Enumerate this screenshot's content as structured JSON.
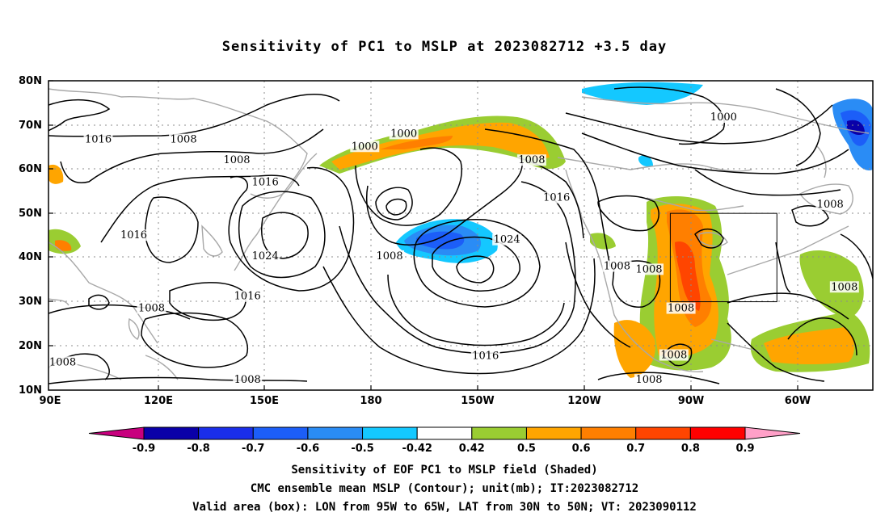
{
  "title": "Sensitivity of PC1 to MSLP at 2023082712 +3.5 day",
  "lat_labels": [
    "80N",
    "70N",
    "60N",
    "50N",
    "40N",
    "30N",
    "20N",
    "10N"
  ],
  "lon_labels": [
    "90E",
    "120E",
    "150E",
    "180",
    "150W",
    "120W",
    "90W",
    "60W"
  ],
  "contour_labels": [
    {
      "text": "1016",
      "lon": 104,
      "lat": 66.2
    },
    {
      "text": "1008",
      "lon": 128,
      "lat": 66.2
    },
    {
      "text": "1008",
      "lon": 143,
      "lat": 61.5
    },
    {
      "text": "1000",
      "lon": 190,
      "lat": 67.5
    },
    {
      "text": "1000",
      "lon": 179,
      "lat": 64.6
    },
    {
      "text": "1008",
      "lon": 226,
      "lat": 61.5
    },
    {
      "text": "1016",
      "lon": 151,
      "lat": 56.5
    },
    {
      "text": "1016",
      "lon": 233,
      "lat": 53.0
    },
    {
      "text": "1016",
      "lon": 114,
      "lat": 44.5
    },
    {
      "text": "1024",
      "lon": 151,
      "lat": 39.8
    },
    {
      "text": "1024",
      "lon": 219,
      "lat": 43.5
    },
    {
      "text": "1008",
      "lon": 186,
      "lat": 39.8
    },
    {
      "text": "1008",
      "lon": 250,
      "lat": 37.5
    },
    {
      "text": "1008",
      "lon": 259,
      "lat": 36.8
    },
    {
      "text": "1016",
      "lon": 146,
      "lat": 30.7
    },
    {
      "text": "1008",
      "lon": 119,
      "lat": 28.0
    },
    {
      "text": "1008",
      "lon": 94,
      "lat": 15.8
    },
    {
      "text": "1008",
      "lon": 146,
      "lat": 11.8
    },
    {
      "text": "1016",
      "lon": 213,
      "lat": 17.2
    },
    {
      "text": "1008",
      "lon": 268,
      "lat": 28.0
    },
    {
      "text": "1008",
      "lon": 266,
      "lat": 17.4
    },
    {
      "text": "1008",
      "lon": 259,
      "lat": 11.8
    },
    {
      "text": "1000",
      "lon": 280,
      "lat": 71.2
    },
    {
      "text": "1008",
      "lon": 310,
      "lat": 51.5
    },
    {
      "text": "1008",
      "lon": 314,
      "lat": 32.8
    }
  ],
  "colorbar": {
    "labels": [
      "-0.9",
      "-0.8",
      "-0.7",
      "-0.6",
      "-0.5",
      "-0.42",
      "0.42",
      "0.5",
      "0.6",
      "0.7",
      "0.8",
      "0.9"
    ],
    "colors": [
      "#0a00a8",
      "#1a2eea",
      "#1c5ef8",
      "#2a8cf5",
      "#14c8ff",
      "#ffffff",
      "#9acd32",
      "#ffa500",
      "#ff7f00",
      "#ff4500",
      "#ff0000"
    ],
    "low_end_color": "#c8007e",
    "high_end_color": "#ffa0c8"
  },
  "valid_box": {
    "lon_west": 265,
    "lon_east": 295,
    "lat_south": 30,
    "lat_north": 50
  },
  "captions": [
    "Sensitivity of EOF PC1 to MSLP field (Shaded)",
    "CMC ensemble mean MSLP (Contour); unit(mb); IT:2023082712",
    "Valid area (box): LON from 95W to 65W, LAT from 30N to 50N; VT: 2023090112"
  ]
}
